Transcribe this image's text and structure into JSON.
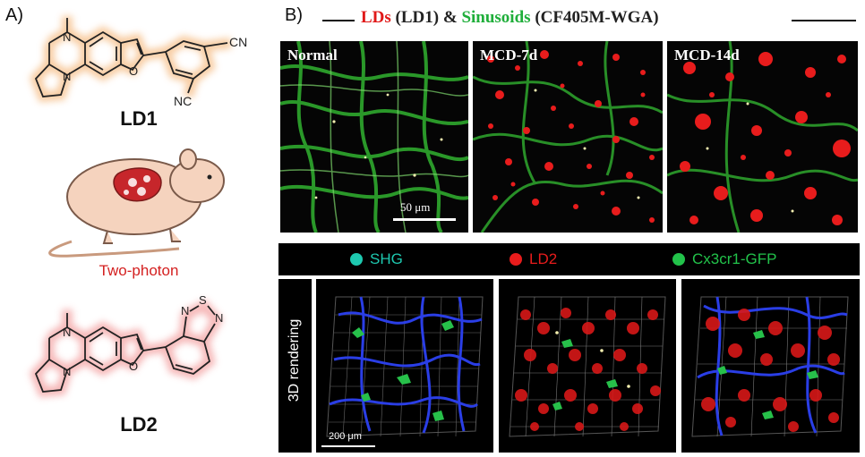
{
  "panel_a": {
    "letter": "A)",
    "ld1": {
      "name": "LD1",
      "n_methyl": "N",
      "n_ring": "N",
      "o": "O",
      "cn1": "CN",
      "cn2": "NC"
    },
    "mouse_caption": "Two-photon",
    "ld2": {
      "name": "LD2",
      "n_methyl": "N",
      "n_ring": "N",
      "o": "O",
      "s": "S",
      "n1": "N",
      "n2": "N"
    },
    "colors": {
      "ld1_glow": "#f7c89a",
      "ld2_glow": "#f5b1b1",
      "caption": "#d42020"
    }
  },
  "panel_b": {
    "letter": "B)",
    "title": {
      "part1": "LDs",
      "part2": " (LD1) & ",
      "part3": "Sinusoids",
      "part4": " (CF405M-WGA)"
    },
    "micrographs": [
      {
        "label": "Normal",
        "scale": "50 μm"
      },
      {
        "label": "MCD-7d"
      },
      {
        "label": "MCD-14d"
      }
    ],
    "legend": [
      {
        "label": "SHG",
        "color": "#1ec9b0"
      },
      {
        "label": "LD2",
        "color": "#e81c1c"
      },
      {
        "label": "Cx3cr1-GFP",
        "color": "#22c24a"
      }
    ],
    "rendering_label": "3D rendering",
    "render_scale": "200 μm"
  }
}
